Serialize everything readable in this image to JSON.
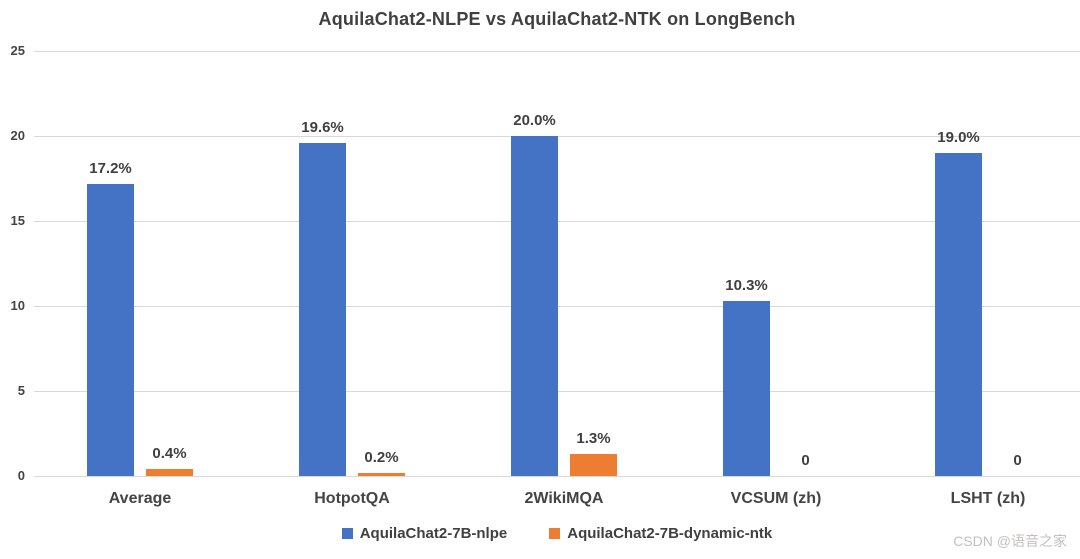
{
  "chart_data": {
    "type": "bar",
    "title": "AquilaChat2-NLPE vs AquilaChat2-NTK on LongBench",
    "categories": [
      "Average",
      "HotpotQA",
      "2WikiMQA",
      "VCSUM (zh)",
      "LSHT (zh)"
    ],
    "series": [
      {
        "name": "AquilaChat2-7B-nlpe",
        "color": "#4472C4",
        "values": [
          17.2,
          19.6,
          20.0,
          10.3,
          19.0
        ],
        "labels": [
          "17.2%",
          "19.6%",
          "20.0%",
          "10.3%",
          "19.0%"
        ]
      },
      {
        "name": "AquilaChat2-7B-dynamic-ntk",
        "color": "#ED7D31",
        "values": [
          0.4,
          0.2,
          1.3,
          0,
          0
        ],
        "labels": [
          "0.4%",
          "0.2%",
          "1.3%",
          "0",
          "0"
        ]
      }
    ],
    "y_axis": {
      "min": 0,
      "max": 25,
      "ticks": [
        25,
        20,
        15,
        10,
        5,
        0
      ]
    },
    "grid": true,
    "legend_position": "bottom",
    "colors": {
      "grid": "#d9d9d9",
      "text": "#404040"
    }
  },
  "watermark": "CSDN @语音之家"
}
